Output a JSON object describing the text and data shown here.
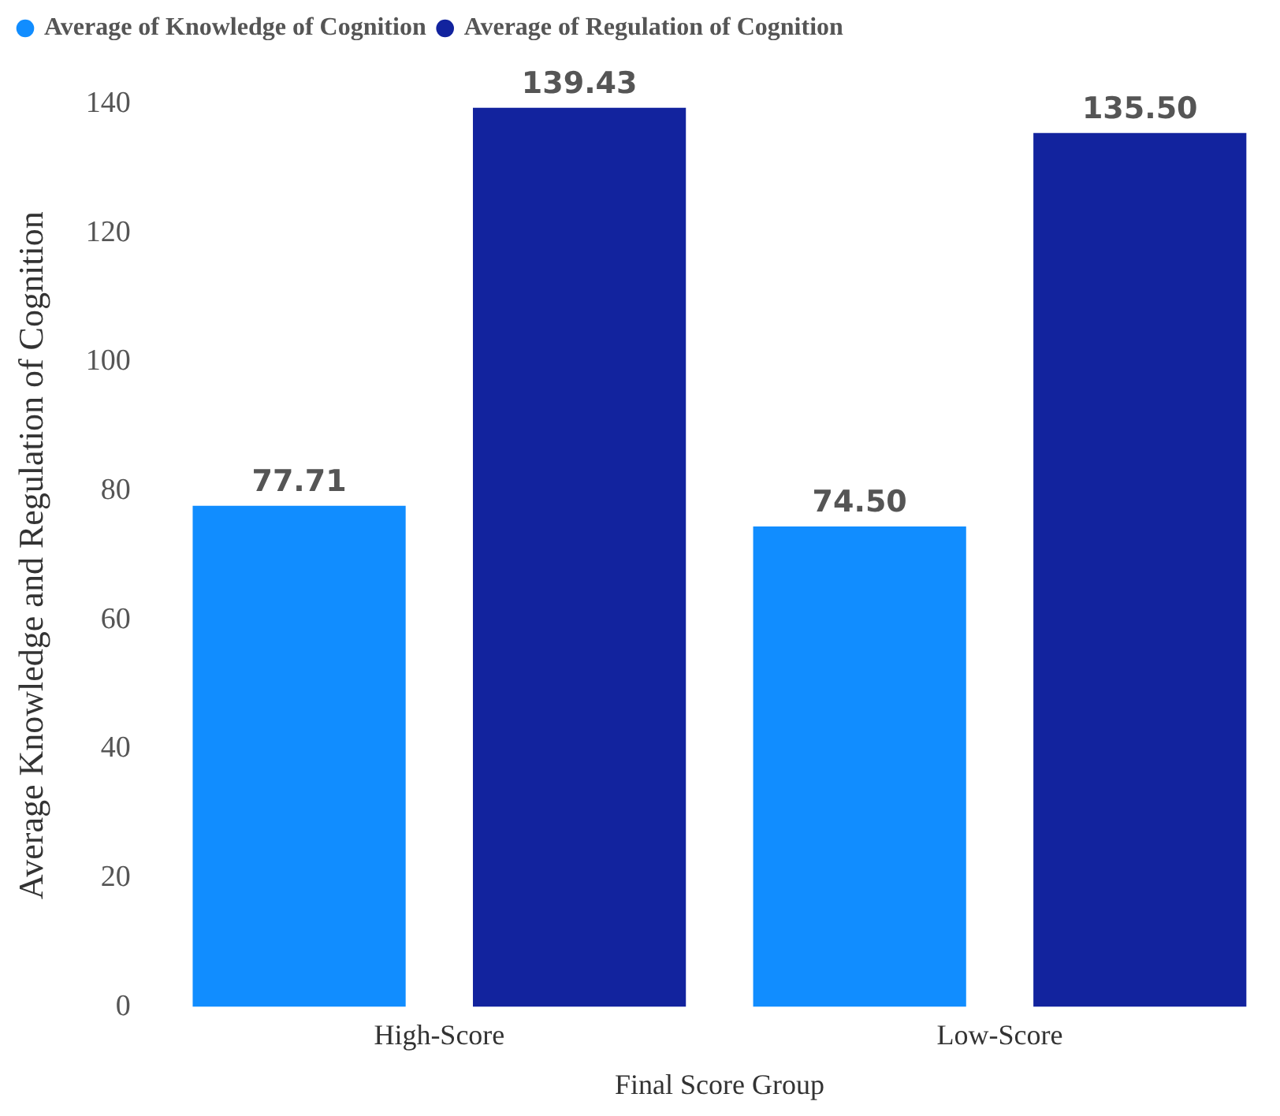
{
  "chart_data": {
    "type": "bar",
    "xlabel": "Final Score Group",
    "ylabel": "Average Knowledge and Regulation of Cognition",
    "categories": [
      "High-Score",
      "Low-Score"
    ],
    "series": [
      {
        "name": "Average of Knowledge of Cognition",
        "color": "#118dff",
        "values": [
          77.71,
          74.5
        ]
      },
      {
        "name": "Average of Regulation of Cognition",
        "color": "#12239e",
        "values": [
          139.43,
          135.5
        ]
      }
    ],
    "value_labels": [
      [
        "77.71",
        "74.50"
      ],
      [
        "139.43",
        "135.50"
      ]
    ],
    "ylim": [
      0,
      140
    ],
    "yticks": [
      0,
      20,
      40,
      60,
      80,
      100,
      120,
      140
    ],
    "grid": false,
    "legend": "top left"
  }
}
